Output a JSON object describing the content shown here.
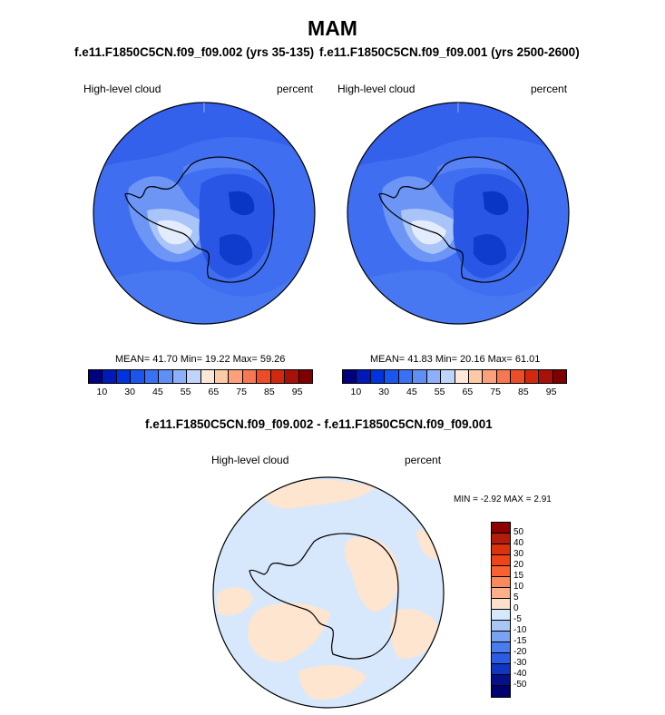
{
  "main_title": "MAM",
  "left_panel": {
    "title": "f.e11.F1850C5CN.f09_f09.002 (yrs 35-135)",
    "variable": "High-level cloud",
    "units": "percent",
    "stats": "MEAN=  41.70  Min=  19.22  Max=  59.26"
  },
  "right_panel": {
    "title": "f.e11.F1850C5CN.f09_f09.001 (yrs 2500-2600)",
    "variable": "High-level cloud",
    "units": "percent",
    "stats": "MEAN=  41.83  Min=  20.16  Max=  61.01"
  },
  "diff_panel": {
    "title": "f.e11.F1850C5CN.f09_f09.002 - f.e11.F1850C5CN.f09_f09.001",
    "variable": "High-level cloud",
    "units": "percent",
    "minmax": "MIN =  -2.92 MAX =   2.91"
  },
  "colorbar_top": {
    "tick_labels": [
      "10",
      "30",
      "45",
      "55",
      "65",
      "75",
      "85",
      "95"
    ],
    "colors": [
      "#00007f",
      "#0019b8",
      "#0033dd",
      "#1a55ee",
      "#3a70f2",
      "#5f8ff5",
      "#8db0f8",
      "#c0d4fb",
      "#fde8d8",
      "#fccaa6",
      "#fba07b",
      "#f67852",
      "#ec4d28",
      "#d2280d",
      "#a8100a",
      "#7f0000"
    ]
  },
  "colorbar_diff": {
    "tick_labels": [
      "50",
      "40",
      "30",
      "20",
      "15",
      "10",
      "5",
      "0",
      "-5",
      "-10",
      "-15",
      "-20",
      "-30",
      "-40",
      "-50"
    ],
    "colors": [
      "#8b0000",
      "#b31c0a",
      "#d8320f",
      "#f04418",
      "#f76230",
      "#fa8a5c",
      "#fcb08a",
      "#fde0cc",
      "#d6e8fc",
      "#a8c6f6",
      "#7aa2f2",
      "#4a7cee",
      "#2a5ce8",
      "#1035c0",
      "#06108a",
      "#000070"
    ]
  },
  "map_colors": {
    "ocean_field": "#3f6ff0",
    "mid_field": "#5a86f2",
    "high_field": "#1f4ad8",
    "antarctic_core": "#0a36c6",
    "light_field": "#c8dcfb",
    "pale_field": "#e8f0fd",
    "diff_neg": "#d8e8fc",
    "diff_pos": "#fde5d0"
  }
}
